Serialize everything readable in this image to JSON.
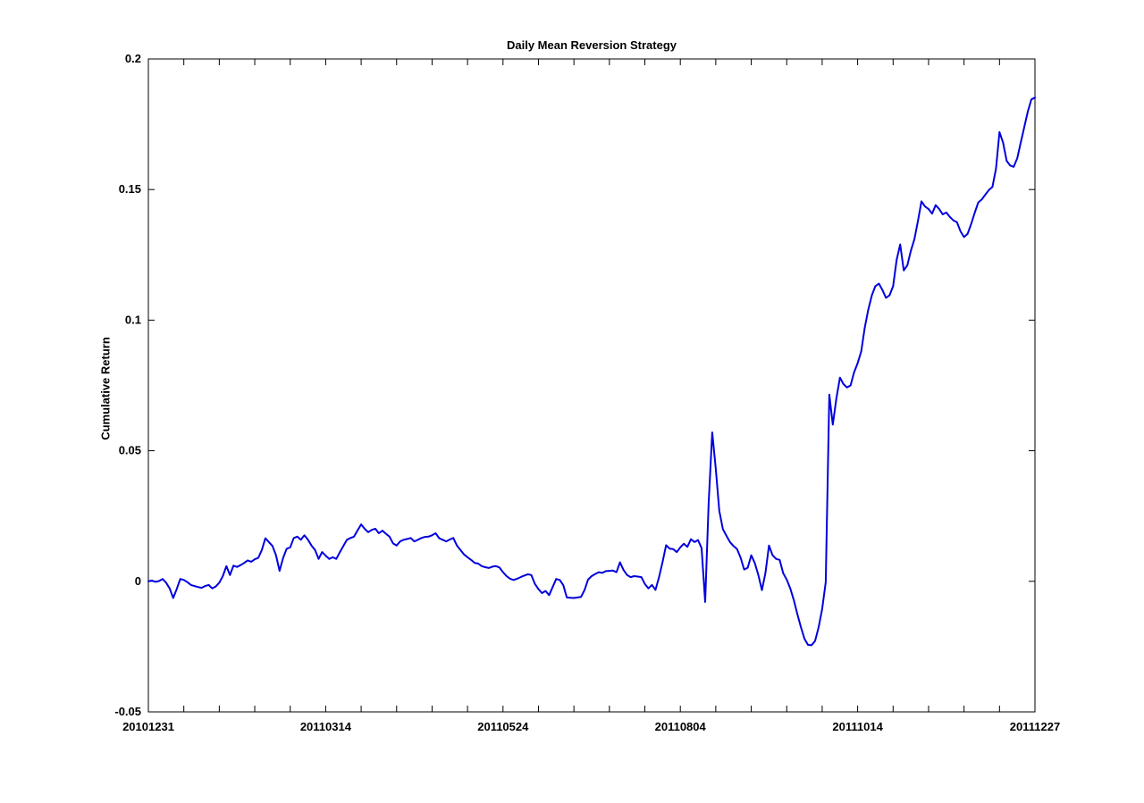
{
  "figure": {
    "background": "#ffffff",
    "axis_color": "#000000"
  },
  "chart_data": {
    "type": "line",
    "title": "Daily Mean Reversion Strategy",
    "xlabel": "",
    "ylabel": "Cumulative Return",
    "x_unit": "trading days (labels are yyyymmdd dates)",
    "xlim": [
      0,
      250
    ],
    "ylim": [
      -0.05,
      0.2
    ],
    "x_tick_positions": [
      0,
      50,
      100,
      150,
      200,
      250
    ],
    "x_tick_labels": [
      "20101231",
      "20110314",
      "20110524",
      "20110804",
      "20111014",
      "20111227"
    ],
    "x_minor_tick_interval": 10,
    "y_ticks": [
      -0.05,
      0,
      0.05,
      0.1,
      0.15,
      0.2
    ],
    "y_tick_labels": [
      "-0.05",
      "0",
      "0.05",
      "0.1",
      "0.15",
      "0.2"
    ],
    "grid": false,
    "box": true,
    "legend": "none",
    "line_color": "#0000dd",
    "line_width": 2,
    "series": [
      {
        "name": "Cumulative Return",
        "x_start": 0,
        "x_step": 1,
        "values": [
          0.0,
          0.0003,
          -0.0002,
          0.0001,
          0.0009,
          -0.0005,
          -0.0027,
          -0.0064,
          -0.003,
          0.0009,
          0.0005,
          -0.0003,
          -0.0014,
          -0.0018,
          -0.0022,
          -0.0025,
          -0.0018,
          -0.0014,
          -0.0027,
          -0.002,
          -0.0005,
          0.002,
          0.0058,
          0.0024,
          0.006,
          0.0055,
          0.0062,
          0.007,
          0.008,
          0.0075,
          0.0084,
          0.009,
          0.012,
          0.0165,
          0.015,
          0.0135,
          0.01,
          0.004,
          0.009,
          0.0125,
          0.013,
          0.0166,
          0.0171,
          0.0159,
          0.0176,
          0.0159,
          0.0137,
          0.012,
          0.0086,
          0.0112,
          0.0098,
          0.0086,
          0.0092,
          0.0086,
          0.0112,
          0.0135,
          0.0159,
          0.0166,
          0.0171,
          0.0195,
          0.0218,
          0.0201,
          0.0188,
          0.0197,
          0.0201,
          0.0184,
          0.0194,
          0.0182,
          0.0171,
          0.0145,
          0.0137,
          0.0153,
          0.0159,
          0.0162,
          0.0166,
          0.0153,
          0.0159,
          0.0166,
          0.017,
          0.0171,
          0.0176,
          0.0184,
          0.0165,
          0.0159,
          0.0153,
          0.016,
          0.0166,
          0.0137,
          0.012,
          0.0103,
          0.0092,
          0.0082,
          0.007,
          0.0068,
          0.0058,
          0.0054,
          0.0051,
          0.0056,
          0.0058,
          0.0053,
          0.0035,
          0.002,
          0.001,
          0.0005,
          0.001,
          0.0016,
          0.0022,
          0.0027,
          0.0024,
          -0.001,
          -0.003,
          -0.0045,
          -0.0037,
          -0.0053,
          -0.0022,
          0.0009,
          0.0005,
          -0.0015,
          -0.0062,
          -0.0063,
          -0.0064,
          -0.0062,
          -0.006,
          -0.0033,
          0.0007,
          0.002,
          0.0028,
          0.0035,
          0.0032,
          0.0039,
          0.004,
          0.0041,
          0.0035,
          0.0073,
          0.0043,
          0.0024,
          0.0016,
          0.002,
          0.0018,
          0.0016,
          -0.001,
          -0.0027,
          -0.0014,
          -0.0033,
          0.0016,
          0.0075,
          0.0138,
          0.0125,
          0.0123,
          0.0112,
          0.013,
          0.0144,
          0.0132,
          0.0161,
          0.015,
          0.0158,
          0.0127,
          -0.0079,
          0.03,
          0.057,
          0.043,
          0.027,
          0.02,
          0.0174,
          0.015,
          0.0135,
          0.0123,
          0.009,
          0.0045,
          0.0052,
          0.01,
          0.007,
          0.0024,
          -0.0034,
          0.0031,
          0.0137,
          0.01,
          0.0086,
          0.0082,
          0.0031,
          0.0007,
          -0.0027,
          -0.0072,
          -0.0125,
          -0.0175,
          -0.022,
          -0.0243,
          -0.0245,
          -0.0228,
          -0.0175,
          -0.0106,
          -0.0003,
          0.0715,
          0.06,
          0.07,
          0.078,
          0.0755,
          0.0742,
          0.075,
          0.08,
          0.0835,
          0.088,
          0.097,
          0.104,
          0.1095,
          0.113,
          0.114,
          0.1115,
          0.1085,
          0.1095,
          0.113,
          0.123,
          0.129,
          0.119,
          0.121,
          0.1265,
          0.131,
          0.138,
          0.1455,
          0.1435,
          0.1425,
          0.1408,
          0.144,
          0.1425,
          0.1405,
          0.1412,
          0.1395,
          0.1382,
          0.1375,
          0.134,
          0.1318,
          0.133,
          0.1368,
          0.141,
          0.145,
          0.1462,
          0.148,
          0.1498,
          0.151,
          0.158,
          0.172,
          0.168,
          0.161,
          0.1592,
          0.1587,
          0.162,
          0.168,
          0.174,
          0.18,
          0.1845,
          0.1852
        ]
      }
    ]
  }
}
